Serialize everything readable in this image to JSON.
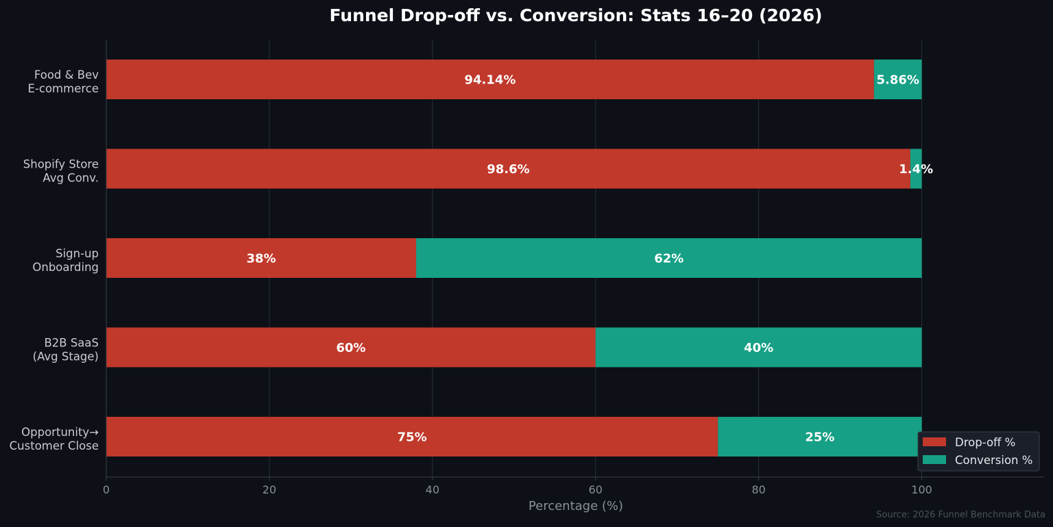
{
  "chart_data": {
    "type": "bar",
    "orientation": "horizontal",
    "stacked": true,
    "title": "Funnel Drop-off vs. Conversion: Stats 16–20 (2026)",
    "xlabel": "Percentage (%)",
    "ylabel": "",
    "xlim": [
      0,
      115
    ],
    "xticks": [
      "0",
      "20",
      "40",
      "60",
      "80",
      "100"
    ],
    "xtick_values": [
      0,
      20,
      40,
      60,
      80,
      100
    ],
    "grid": "vertical",
    "categories": [
      [
        "Food & Bev",
        "E-commerce"
      ],
      [
        "Shopify Store",
        "Avg Conv."
      ],
      [
        "Sign-up",
        "Onboarding"
      ],
      [
        "B2B SaaS",
        "(Avg Stage)"
      ],
      [
        "Opportunity→",
        "Customer Close"
      ]
    ],
    "series": [
      {
        "name": "Drop-off %",
        "color": "#c0392b",
        "values": [
          94.14,
          98.6,
          38,
          60,
          75
        ],
        "labels": [
          "94.14%",
          "98.6%",
          "38%",
          "60%",
          "75%"
        ]
      },
      {
        "name": "Conversion %",
        "color": "#16a085",
        "values": [
          5.86,
          1.4,
          62,
          40,
          25
        ],
        "labels": [
          "5.86%",
          "1.4%",
          "62%",
          "40%",
          "25%"
        ]
      }
    ],
    "legend_position": "bottom-right",
    "source_note": "Source: 2026 Funnel Benchmark Data"
  },
  "colors": {
    "background": "#0d1017",
    "legend_bg": "#1a1f2a"
  }
}
